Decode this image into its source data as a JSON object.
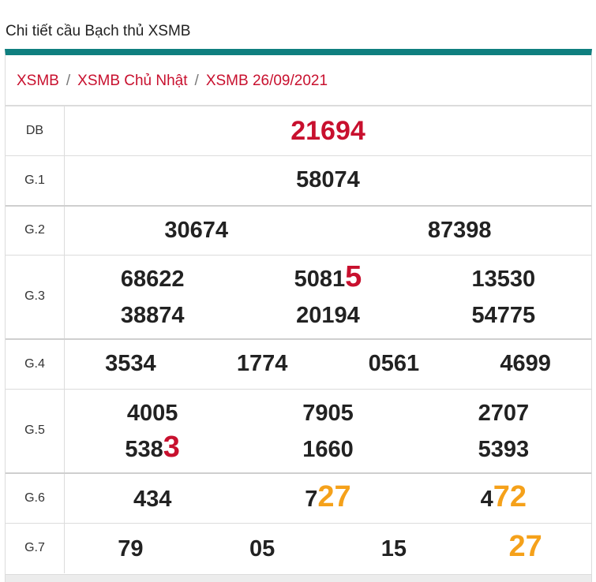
{
  "page": {
    "title": "Chi tiết cầu Bạch thủ XSMB"
  },
  "breadcrumb": {
    "items": [
      "XSMB",
      "XSMB Chủ Nhật",
      "XSMB 26/09/2021"
    ],
    "separator": "/"
  },
  "colors": {
    "accent_bar": "#0f7f7f",
    "highlight_red": "#c8102e",
    "highlight_orange": "#f5a11a"
  },
  "results": {
    "db": {
      "label": "DB",
      "value": "21694"
    },
    "g1": {
      "label": "G.1",
      "values": [
        "58074"
      ]
    },
    "g2": {
      "label": "G.2",
      "values": [
        "30674",
        "87398"
      ]
    },
    "g3": {
      "label": "G.3",
      "values": [
        {
          "plain": "68622",
          "highlight": ""
        },
        {
          "plain": "5081",
          "highlight": "5"
        },
        {
          "plain": "13530",
          "highlight": ""
        },
        {
          "plain": "38874",
          "highlight": ""
        },
        {
          "plain": "20194",
          "highlight": ""
        },
        {
          "plain": "54775",
          "highlight": ""
        }
      ]
    },
    "g4": {
      "label": "G.4",
      "values": [
        "3534",
        "1774",
        "0561",
        "4699"
      ]
    },
    "g5": {
      "label": "G.5",
      "values": [
        {
          "plain": "4005",
          "highlight": ""
        },
        {
          "plain": "7905",
          "highlight": ""
        },
        {
          "plain": "2707",
          "highlight": ""
        },
        {
          "plain": "538",
          "highlight": "3"
        },
        {
          "plain": "1660",
          "highlight": ""
        },
        {
          "plain": "5393",
          "highlight": ""
        }
      ]
    },
    "g6": {
      "label": "G.6",
      "values": [
        {
          "plain": "434",
          "highlight": ""
        },
        {
          "plain": "7",
          "highlight": "27"
        },
        {
          "plain": "4",
          "highlight": "72"
        }
      ]
    },
    "g7": {
      "label": "G.7",
      "values": [
        {
          "plain": "79",
          "highlight": ""
        },
        {
          "plain": "05",
          "highlight": ""
        },
        {
          "plain": "15",
          "highlight": ""
        },
        {
          "plain": "",
          "highlight": "27"
        }
      ]
    }
  }
}
